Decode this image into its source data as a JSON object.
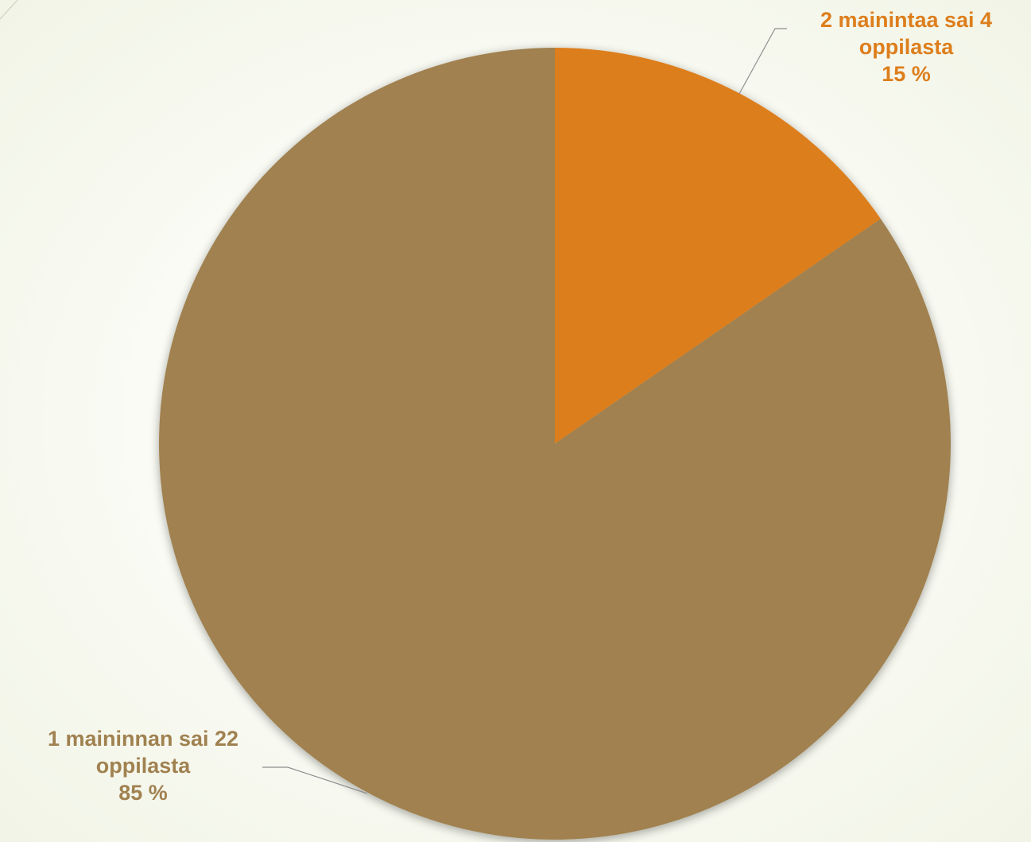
{
  "chart_data": {
    "type": "pie",
    "title": "",
    "slices": [
      {
        "label_line1": "2 mainintaa sai 4",
        "label_line2": "oppilasta",
        "percent_label": "15 %",
        "value": 4,
        "percent": 15,
        "color": "#dd7e1c"
      },
      {
        "label_line1": "1 maininnan sai 22",
        "label_line2": "oppilasta",
        "percent_label": "85 %",
        "value": 22,
        "percent": 85,
        "color": "#a08150"
      }
    ],
    "legend": "none",
    "start_angle": "12 o'clock, clockwise"
  },
  "colors": {
    "background": "#f6f8ee",
    "leader_line": "#8f8f8f"
  }
}
